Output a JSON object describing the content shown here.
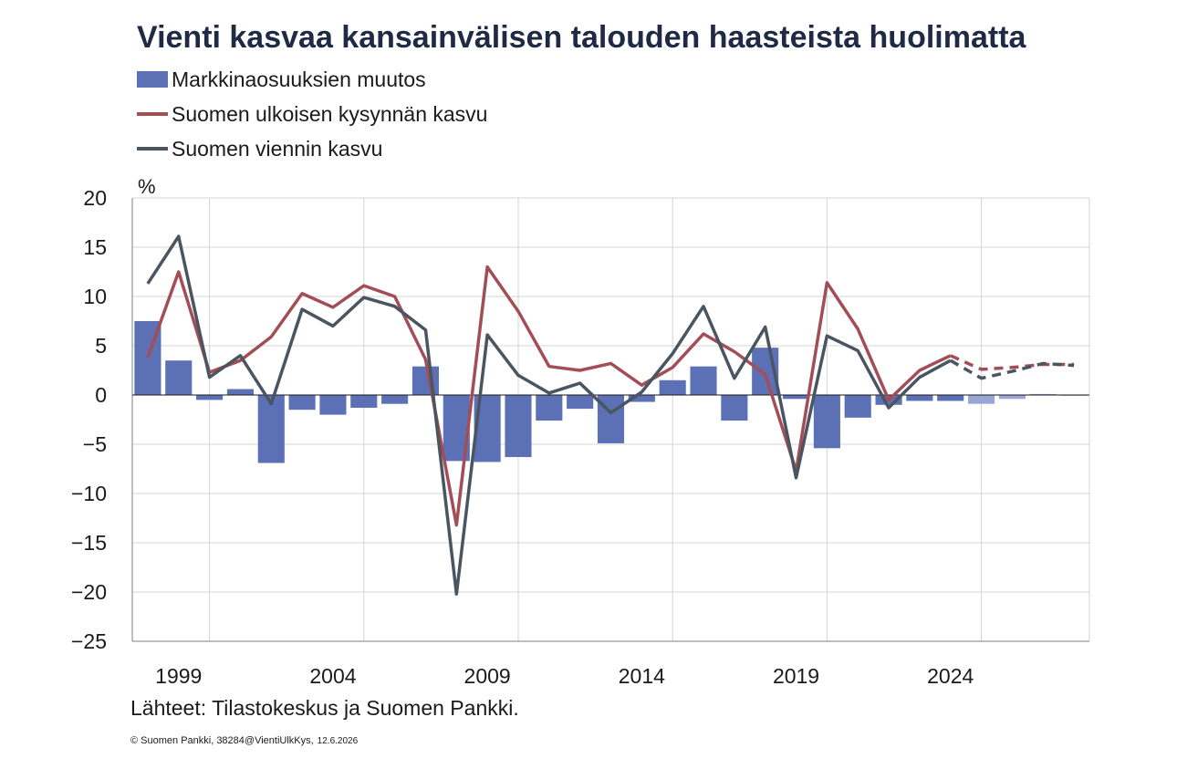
{
  "title": "Vienti kasvaa kansainvälisen talouden haasteista huolimatta",
  "unit": "%",
  "source": "Lähteet: Tilastokeskus ja Suomen Pankki.",
  "copyright": "© Suomen Pankki, 38284@VientiUlkKys,",
  "date": "12.6.2026",
  "chart_data": {
    "type": "bar+line",
    "ylim": [
      -25,
      20
    ],
    "yticks": [
      20,
      15,
      10,
      5,
      0,
      -5,
      -10,
      -15,
      -20,
      -25
    ],
    "xlim": [
      1998,
      2028
    ],
    "xtick_labels": [
      "1999",
      "2004",
      "2009",
      "2014",
      "2019",
      "2024"
    ],
    "grid": true,
    "legend_position": "top-left",
    "forecast_start_year": 2025,
    "years": [
      1998,
      1999,
      2000,
      2001,
      2002,
      2003,
      2004,
      2005,
      2006,
      2007,
      2008,
      2009,
      2010,
      2011,
      2012,
      2013,
      2014,
      2015,
      2016,
      2017,
      2018,
      2019,
      2020,
      2021,
      2022,
      2023,
      2024,
      2025,
      2026,
      2027,
      2028
    ],
    "series": [
      {
        "name": "Markkinaosuuksien muutos",
        "type": "bar",
        "color": "#5b70b5",
        "forecast_color": "#9aa7d6",
        "values": [
          7.5,
          3.5,
          -0.5,
          0.6,
          -6.9,
          -1.5,
          -2.0,
          -1.3,
          -0.9,
          2.9,
          -6.7,
          -6.8,
          -6.3,
          -2.6,
          -1.4,
          -4.9,
          -0.7,
          1.5,
          2.9,
          -2.6,
          4.8,
          -0.4,
          -5.4,
          -2.3,
          -1.0,
          -0.6,
          -0.6,
          -0.9,
          -0.4,
          0.1,
          0.0
        ]
      },
      {
        "name": "Suomen ulkoisen kysynnän kasvu",
        "type": "line",
        "color": "#a34e57",
        "values": [
          3.8,
          12.5,
          2.3,
          3.5,
          5.9,
          10.3,
          8.9,
          11.1,
          10.0,
          3.6,
          -13.2,
          13.0,
          8.5,
          2.9,
          2.5,
          3.2,
          1.0,
          2.8,
          6.2,
          4.4,
          2.1,
          -7.7,
          11.4,
          6.7,
          -0.5,
          2.5,
          4.0,
          2.6,
          2.8,
          3.1,
          3.1
        ]
      },
      {
        "name": "Suomen viennin kasvu",
        "type": "line",
        "color": "#4a5562",
        "values": [
          11.3,
          16.1,
          1.8,
          4.0,
          -0.9,
          8.7,
          7.0,
          9.9,
          9.0,
          6.6,
          -20.2,
          6.1,
          2.0,
          0.2,
          1.2,
          -1.8,
          0.3,
          4.2,
          9.0,
          1.7,
          6.9,
          -8.4,
          6.0,
          4.5,
          -1.3,
          1.8,
          3.5,
          1.7,
          2.4,
          3.2,
          3.0
        ]
      }
    ]
  }
}
